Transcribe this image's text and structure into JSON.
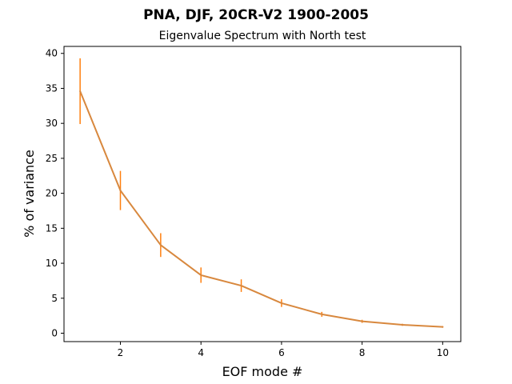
{
  "figure": {
    "suptitle": "PNA, DJF, 20CR-V2 1900-2005"
  },
  "chart_data": {
    "type": "line",
    "title": "Eigenvalue Spectrum with North test",
    "xlabel": "EOF mode #",
    "ylabel": "% of variance",
    "xlim": [
      0.6,
      10.45
    ],
    "ylim": [
      -1.2,
      41.0
    ],
    "xticks": [
      2,
      4,
      6,
      8,
      10
    ],
    "yticks": [
      0,
      5,
      10,
      15,
      20,
      25,
      30,
      35,
      40
    ],
    "grid": false,
    "legend": "none",
    "series": [
      {
        "color": "#ff7f0e",
        "line_color": "#d8883e",
        "x": [
          1,
          2,
          3,
          4,
          5,
          6,
          7,
          8,
          9,
          10
        ],
        "y": [
          34.6,
          20.4,
          12.6,
          8.3,
          6.8,
          4.3,
          2.7,
          1.7,
          1.2,
          0.9
        ],
        "yerr": [
          4.7,
          2.8,
          1.7,
          1.1,
          0.9,
          0.55,
          0.35,
          0.22,
          0.15,
          0.12
        ]
      }
    ]
  }
}
